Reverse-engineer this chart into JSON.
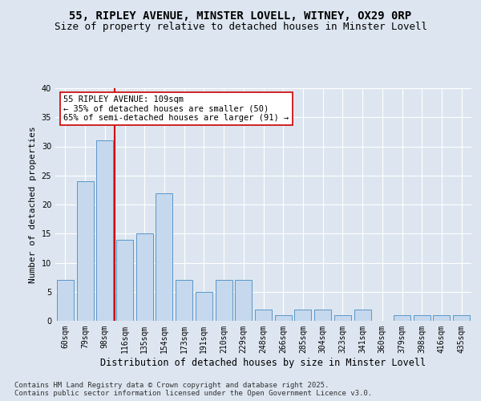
{
  "title": "55, RIPLEY AVENUE, MINSTER LOVELL, WITNEY, OX29 0RP",
  "subtitle": "Size of property relative to detached houses in Minster Lovell",
  "xlabel": "Distribution of detached houses by size in Minster Lovell",
  "ylabel": "Number of detached properties",
  "categories": [
    "60sqm",
    "79sqm",
    "98sqm",
    "116sqm",
    "135sqm",
    "154sqm",
    "173sqm",
    "191sqm",
    "210sqm",
    "229sqm",
    "248sqm",
    "266sqm",
    "285sqm",
    "304sqm",
    "323sqm",
    "341sqm",
    "360sqm",
    "379sqm",
    "398sqm",
    "416sqm",
    "435sqm"
  ],
  "values": [
    7,
    24,
    31,
    14,
    15,
    22,
    7,
    5,
    7,
    7,
    2,
    1,
    2,
    2,
    1,
    2,
    0,
    1,
    1,
    1,
    1
  ],
  "bar_color": "#c5d8ed",
  "bar_edge_color": "#5a96c8",
  "vline_x_index": 2.5,
  "vline_color": "#cc0000",
  "annotation_line1": "55 RIPLEY AVENUE: 109sqm",
  "annotation_line2": "← 35% of detached houses are smaller (50)",
  "annotation_line3": "65% of semi-detached houses are larger (91) →",
  "annotation_box_color": "#ffffff",
  "annotation_box_edge": "#cc0000",
  "background_color": "#dde6f0",
  "plot_bg_color": "#dde6f0",
  "grid_color": "#ffffff",
  "ylim": [
    0,
    40
  ],
  "yticks": [
    0,
    5,
    10,
    15,
    20,
    25,
    30,
    35,
    40
  ],
  "footer": "Contains HM Land Registry data © Crown copyright and database right 2025.\nContains public sector information licensed under the Open Government Licence v3.0.",
  "title_fontsize": 10,
  "subtitle_fontsize": 9,
  "ylabel_fontsize": 8,
  "xlabel_fontsize": 8.5,
  "tick_fontsize": 7,
  "annotation_fontsize": 7.5,
  "footer_fontsize": 6.5
}
